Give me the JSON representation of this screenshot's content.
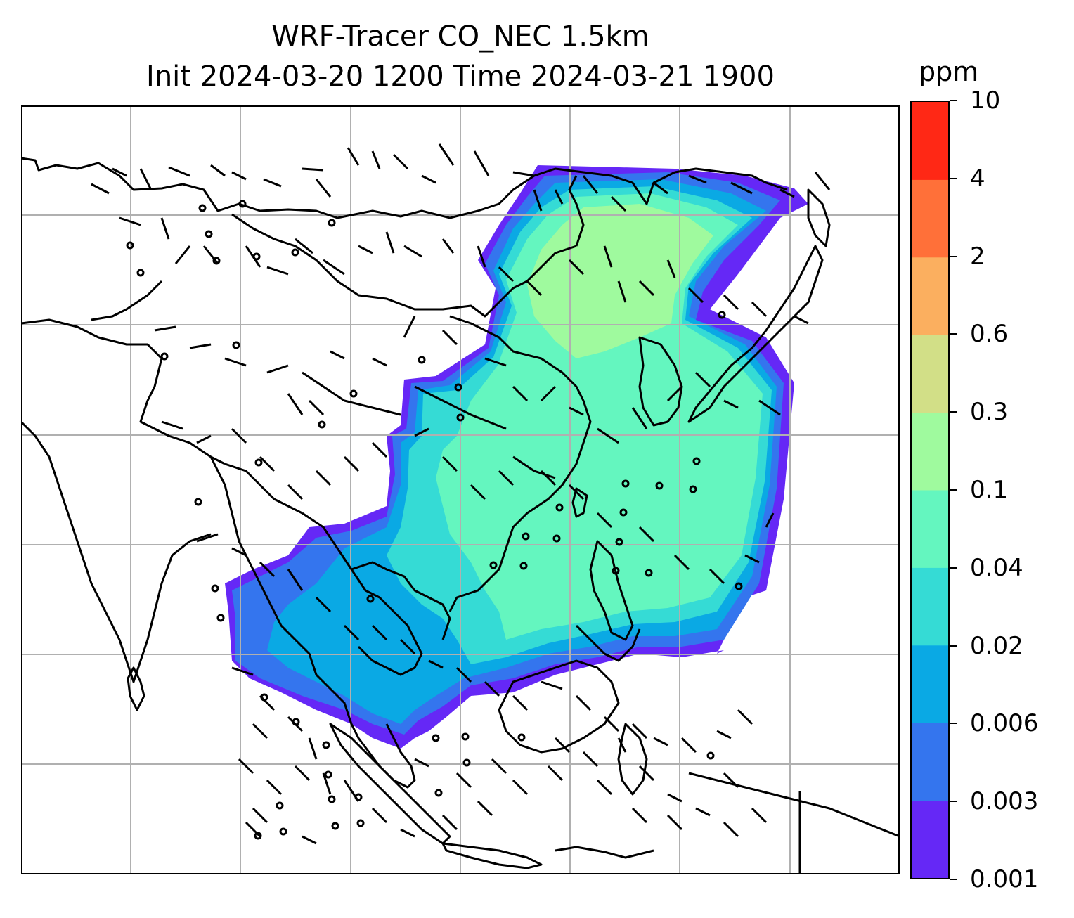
{
  "title": {
    "line1": "WRF-Tracer CO_NEC 1.5km",
    "line2": "Init 2024-03-20 1200 Time 2024-03-21 1900"
  },
  "colorbar": {
    "unit": "ppm",
    "tick_labels": [
      "0.001",
      "0.003",
      "0.006",
      "0.02",
      "0.04",
      "0.1",
      "0.3",
      "0.6",
      "2",
      "4",
      "10"
    ],
    "colors": [
      "#6528f6",
      "#3475ee",
      "#0aa9e4",
      "#35dbd5",
      "#64f6bf",
      "#9ffa9e",
      "#d2df87",
      "#fbaf5f",
      "#ff7039",
      "#ff2815"
    ]
  },
  "map": {
    "projection": "lat-lon",
    "gridlines": true,
    "features": [
      "coastlines",
      "country-borders",
      "wind-barbs",
      "tracer-concentration-fill"
    ]
  },
  "chart_data": {
    "type": "heatmap",
    "variable": "CO_NEC",
    "level": "1.5km",
    "units": "ppm",
    "levels": [
      0.001,
      0.003,
      0.006,
      0.02,
      0.04,
      0.1,
      0.3,
      0.6,
      2,
      4,
      10
    ]
  }
}
